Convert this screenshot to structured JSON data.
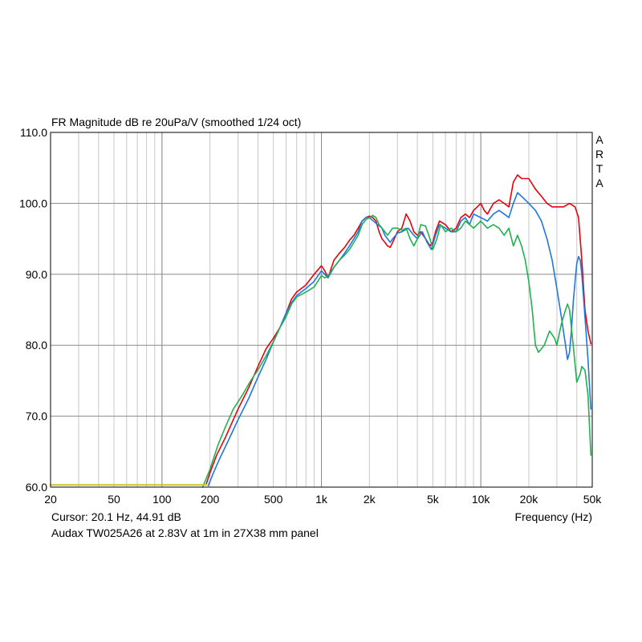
{
  "chart_data": {
    "type": "line",
    "title": "FR Magnitude dB re 20uPa/V (smoothed 1/24 oct)",
    "brand": "ARTA",
    "xlabel": "Frequency (Hz)",
    "ylabel": "",
    "x_scale": "log",
    "xlim": [
      20,
      50000
    ],
    "ylim": [
      60,
      110
    ],
    "x_ticks": [
      20,
      50,
      100,
      200,
      500,
      1000,
      2000,
      5000,
      10000,
      20000,
      50000
    ],
    "x_tick_labels": [
      "20",
      "50",
      "100",
      "200",
      "500",
      "1k",
      "2k",
      "5k",
      "10k",
      "20k",
      "50k"
    ],
    "y_ticks": [
      60,
      70,
      80,
      90,
      100,
      110
    ],
    "y_tick_labels": [
      "60.0",
      "70.0",
      "80.0",
      "90.0",
      "100.0",
      "110.0"
    ],
    "grid": true,
    "cursor_text": "Cursor: 20.1 Hz, 44.91 dB",
    "caption": "Audax TW025A26 at 2.83V at 1m in 27X38 mm panel",
    "series": [
      {
        "color": "#e8000b",
        "points": [
          [
            190,
            60.5
          ],
          [
            200,
            62
          ],
          [
            220,
            64.5
          ],
          [
            250,
            67
          ],
          [
            300,
            71
          ],
          [
            350,
            74
          ],
          [
            400,
            77
          ],
          [
            450,
            79.5
          ],
          [
            500,
            81
          ],
          [
            550,
            82.5
          ],
          [
            600,
            84.5
          ],
          [
            650,
            86.5
          ],
          [
            700,
            87.5
          ],
          [
            800,
            88.5
          ],
          [
            900,
            90
          ],
          [
            1000,
            91.2
          ],
          [
            1050,
            90.5
          ],
          [
            1100,
            89.5
          ],
          [
            1200,
            92
          ],
          [
            1300,
            93
          ],
          [
            1400,
            93.8
          ],
          [
            1500,
            94.8
          ],
          [
            1600,
            95.5
          ],
          [
            1700,
            96.5
          ],
          [
            1800,
            97.5
          ],
          [
            1900,
            98
          ],
          [
            2000,
            98.2
          ],
          [
            2100,
            98
          ],
          [
            2200,
            97.5
          ],
          [
            2300,
            96
          ],
          [
            2400,
            95
          ],
          [
            2500,
            94.5
          ],
          [
            2600,
            94
          ],
          [
            2700,
            93.8
          ],
          [
            2800,
            94.5
          ],
          [
            3000,
            96
          ],
          [
            3200,
            96.5
          ],
          [
            3400,
            98.5
          ],
          [
            3600,
            97.5
          ],
          [
            3800,
            96
          ],
          [
            4000,
            95.5
          ],
          [
            4200,
            96
          ],
          [
            4500,
            95
          ],
          [
            4800,
            94
          ],
          [
            5000,
            94.5
          ],
          [
            5200,
            96
          ],
          [
            5500,
            97.5
          ],
          [
            6000,
            97
          ],
          [
            6500,
            96
          ],
          [
            7000,
            96.5
          ],
          [
            7500,
            98
          ],
          [
            8000,
            98.5
          ],
          [
            8500,
            98
          ],
          [
            9000,
            99
          ],
          [
            9500,
            99.5
          ],
          [
            10000,
            100
          ],
          [
            10500,
            99
          ],
          [
            11000,
            98.5
          ],
          [
            12000,
            100
          ],
          [
            13000,
            100.5
          ],
          [
            14000,
            100
          ],
          [
            15000,
            99.5
          ],
          [
            16000,
            103
          ],
          [
            17000,
            104
          ],
          [
            18000,
            103.5
          ],
          [
            20000,
            103.5
          ],
          [
            22000,
            102
          ],
          [
            24000,
            101
          ],
          [
            26000,
            100
          ],
          [
            28000,
            99.5
          ],
          [
            30000,
            99.5
          ],
          [
            33000,
            99.5
          ],
          [
            36000,
            100
          ],
          [
            39000,
            99.5
          ],
          [
            41000,
            98
          ],
          [
            43000,
            92
          ],
          [
            45000,
            85
          ],
          [
            47000,
            82
          ],
          [
            49000,
            80.2
          ]
        ]
      },
      {
        "color": "#1f77e0",
        "points": [
          [
            195,
            60.2
          ],
          [
            210,
            62
          ],
          [
            230,
            64
          ],
          [
            260,
            66.5
          ],
          [
            300,
            69.5
          ],
          [
            350,
            72.5
          ],
          [
            400,
            75.5
          ],
          [
            450,
            78
          ],
          [
            500,
            80.5
          ],
          [
            550,
            82.5
          ],
          [
            600,
            84.5
          ],
          [
            650,
            86
          ],
          [
            700,
            87
          ],
          [
            800,
            88
          ],
          [
            900,
            89
          ],
          [
            1000,
            90.5
          ],
          [
            1050,
            90
          ],
          [
            1100,
            89.5
          ],
          [
            1200,
            91
          ],
          [
            1300,
            92
          ],
          [
            1400,
            93
          ],
          [
            1500,
            94
          ],
          [
            1600,
            95
          ],
          [
            1700,
            96
          ],
          [
            1800,
            97.5
          ],
          [
            1900,
            98
          ],
          [
            2000,
            98
          ],
          [
            2200,
            97.2
          ],
          [
            2400,
            96.5
          ],
          [
            2500,
            95.5
          ],
          [
            2700,
            94.5
          ],
          [
            2800,
            95
          ],
          [
            3000,
            95.8
          ],
          [
            3200,
            96
          ],
          [
            3500,
            96.5
          ],
          [
            3800,
            95.5
          ],
          [
            4000,
            95
          ],
          [
            4300,
            96
          ],
          [
            4600,
            94.5
          ],
          [
            4900,
            93.5
          ],
          [
            5200,
            95.5
          ],
          [
            5500,
            97
          ],
          [
            6000,
            96.5
          ],
          [
            6500,
            96
          ],
          [
            7000,
            96
          ],
          [
            7500,
            97.5
          ],
          [
            8000,
            98
          ],
          [
            8500,
            97
          ],
          [
            9000,
            98.5
          ],
          [
            10000,
            98
          ],
          [
            11000,
            97.5
          ],
          [
            12000,
            98.5
          ],
          [
            13000,
            99
          ],
          [
            14000,
            98.5
          ],
          [
            15000,
            98
          ],
          [
            16000,
            100
          ],
          [
            17000,
            101.5
          ],
          [
            18000,
            101
          ],
          [
            20000,
            100
          ],
          [
            22000,
            99
          ],
          [
            24000,
            97.5
          ],
          [
            26000,
            95
          ],
          [
            28000,
            92
          ],
          [
            30000,
            88
          ],
          [
            32000,
            84
          ],
          [
            34000,
            80
          ],
          [
            35000,
            78
          ],
          [
            36000,
            79
          ],
          [
            37000,
            82
          ],
          [
            38000,
            86
          ],
          [
            39000,
            89
          ],
          [
            40000,
            91.5
          ],
          [
            41000,
            92.5
          ],
          [
            42000,
            92
          ],
          [
            43000,
            90
          ],
          [
            45000,
            84
          ],
          [
            47000,
            78
          ],
          [
            49000,
            71
          ]
        ]
      },
      {
        "color": "#20b150",
        "points": [
          [
            180,
            60
          ],
          [
            200,
            62.5
          ],
          [
            225,
            66
          ],
          [
            250,
            68.5
          ],
          [
            280,
            71
          ],
          [
            320,
            73
          ],
          [
            360,
            75
          ],
          [
            400,
            76.5
          ],
          [
            450,
            78.5
          ],
          [
            500,
            80.5
          ],
          [
            550,
            82.5
          ],
          [
            600,
            84
          ],
          [
            650,
            85.8
          ],
          [
            700,
            86.8
          ],
          [
            800,
            87.5
          ],
          [
            900,
            88.2
          ],
          [
            1000,
            89.8
          ],
          [
            1050,
            89.5
          ],
          [
            1100,
            89.8
          ],
          [
            1200,
            91
          ],
          [
            1300,
            92
          ],
          [
            1400,
            92.7
          ],
          [
            1500,
            93.5
          ],
          [
            1600,
            94.5
          ],
          [
            1700,
            95.5
          ],
          [
            1800,
            97
          ],
          [
            1900,
            97.7
          ],
          [
            2000,
            98
          ],
          [
            2100,
            98.3
          ],
          [
            2200,
            98
          ],
          [
            2300,
            97
          ],
          [
            2500,
            96
          ],
          [
            2600,
            95.5
          ],
          [
            2800,
            96.5
          ],
          [
            3000,
            96.5
          ],
          [
            3200,
            96.2
          ],
          [
            3400,
            96.5
          ],
          [
            3600,
            95
          ],
          [
            3800,
            94
          ],
          [
            4000,
            95
          ],
          [
            4200,
            97
          ],
          [
            4500,
            96.8
          ],
          [
            4800,
            95
          ],
          [
            5000,
            93.5
          ],
          [
            5300,
            95
          ],
          [
            5600,
            97
          ],
          [
            6000,
            96
          ],
          [
            6500,
            96.5
          ],
          [
            7000,
            96
          ],
          [
            7500,
            96.5
          ],
          [
            8000,
            97.5
          ],
          [
            8500,
            97
          ],
          [
            9000,
            96.5
          ],
          [
            10000,
            97.5
          ],
          [
            11000,
            96.5
          ],
          [
            12000,
            97
          ],
          [
            13000,
            96.5
          ],
          [
            14000,
            95.5
          ],
          [
            15000,
            96.5
          ],
          [
            16000,
            94
          ],
          [
            17000,
            95.5
          ],
          [
            18000,
            94
          ],
          [
            19000,
            92
          ],
          [
            20000,
            89
          ],
          [
            21000,
            85
          ],
          [
            22000,
            80
          ],
          [
            23000,
            79
          ],
          [
            24000,
            79.5
          ],
          [
            25000,
            80
          ],
          [
            27000,
            82
          ],
          [
            28000,
            81.5
          ],
          [
            29000,
            81
          ],
          [
            30000,
            80
          ],
          [
            32000,
            83
          ],
          [
            34000,
            85
          ],
          [
            35000,
            85.8
          ],
          [
            36000,
            85
          ],
          [
            38000,
            80
          ],
          [
            40000,
            74.8
          ],
          [
            42000,
            76
          ],
          [
            43000,
            77
          ],
          [
            45000,
            76.5
          ],
          [
            47000,
            73
          ],
          [
            49000,
            64.5
          ]
        ]
      },
      {
        "color": "#c8c820",
        "points": [
          [
            20,
            60.3
          ],
          [
            190,
            60.3
          ]
        ]
      }
    ]
  }
}
